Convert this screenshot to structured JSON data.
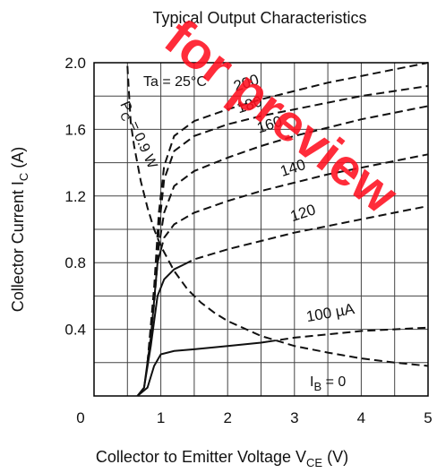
{
  "chart_data": {
    "type": "line",
    "title": "Typical Output Characteristics",
    "xlabel": {
      "main": "Collector to Emitter Voltage  V",
      "sub": "CE",
      "unit": "  (V)"
    },
    "ylabel": {
      "main": "Collector Current  I",
      "sub": "C",
      "unit": "  (A)"
    },
    "xlim": [
      0,
      5
    ],
    "ylim": [
      0,
      2.0
    ],
    "x_ticks": [
      "0",
      "1",
      "2",
      "3",
      "4",
      "5"
    ],
    "y_ticks": [
      "0.4",
      "0.8",
      "1.2",
      "1.6",
      "2.0"
    ],
    "grid": true,
    "watermark": "for preview",
    "annotations": {
      "temperature": "Ta = 25°C",
      "power_main": "P",
      "power_sub": "C",
      "power_rest": " = 0.9 W",
      "ib_main": "I",
      "ib_sub": "B",
      "ib_rest": " = 0"
    },
    "series": [
      {
        "name": "100 µA",
        "style": "solid-dashed",
        "split_x": 2.6,
        "points": [
          [
            0.65,
            0
          ],
          [
            0.8,
            0.05
          ],
          [
            0.9,
            0.18
          ],
          [
            1.0,
            0.25
          ],
          [
            1.2,
            0.27
          ],
          [
            1.5,
            0.28
          ],
          [
            2.0,
            0.3
          ],
          [
            2.5,
            0.32
          ],
          [
            3.0,
            0.35
          ],
          [
            3.5,
            0.37
          ],
          [
            4.0,
            0.39
          ],
          [
            4.5,
            0.4
          ],
          [
            5.0,
            0.41
          ]
        ]
      },
      {
        "name": "120",
        "style": "solid-dashed",
        "split_x": 1.35,
        "points": [
          [
            0.65,
            0
          ],
          [
            0.75,
            0.05
          ],
          [
            0.85,
            0.3
          ],
          [
            0.95,
            0.6
          ],
          [
            1.05,
            0.7
          ],
          [
            1.2,
            0.76
          ],
          [
            1.5,
            0.82
          ],
          [
            2.0,
            0.88
          ],
          [
            2.5,
            0.93
          ],
          [
            3.0,
            0.98
          ],
          [
            3.5,
            1.02
          ],
          [
            4.0,
            1.06
          ],
          [
            4.5,
            1.1
          ],
          [
            5.0,
            1.14
          ]
        ]
      },
      {
        "name": "140",
        "style": "solid-dashed",
        "split_x": 1.0,
        "points": [
          [
            0.65,
            0
          ],
          [
            0.75,
            0.05
          ],
          [
            0.85,
            0.35
          ],
          [
            0.95,
            0.8
          ],
          [
            1.05,
            0.95
          ],
          [
            1.2,
            1.03
          ],
          [
            1.5,
            1.1
          ],
          [
            2.0,
            1.17
          ],
          [
            2.5,
            1.23
          ],
          [
            3.0,
            1.28
          ],
          [
            3.5,
            1.33
          ],
          [
            4.0,
            1.37
          ],
          [
            4.5,
            1.41
          ],
          [
            5.0,
            1.45
          ]
        ]
      },
      {
        "name": "160",
        "style": "dashed",
        "split_x": 0,
        "points": [
          [
            0.8,
            0.2
          ],
          [
            0.9,
            0.55
          ],
          [
            0.97,
            0.9
          ],
          [
            1.05,
            1.1
          ],
          [
            1.2,
            1.26
          ],
          [
            1.5,
            1.35
          ],
          [
            2.0,
            1.43
          ],
          [
            2.5,
            1.5
          ],
          [
            3.0,
            1.56
          ],
          [
            3.5,
            1.61
          ],
          [
            4.0,
            1.66
          ],
          [
            4.5,
            1.7
          ],
          [
            5.0,
            1.74
          ]
        ]
      },
      {
        "name": "180",
        "style": "dashed",
        "split_x": 0,
        "points": [
          [
            0.8,
            0.2
          ],
          [
            0.9,
            0.6
          ],
          [
            0.97,
            1.0
          ],
          [
            1.05,
            1.3
          ],
          [
            1.2,
            1.47
          ],
          [
            1.5,
            1.56
          ],
          [
            2.0,
            1.63
          ],
          [
            2.5,
            1.68
          ],
          [
            3.0,
            1.72
          ],
          [
            3.5,
            1.76
          ],
          [
            4.0,
            1.8
          ],
          [
            4.5,
            1.83
          ],
          [
            5.0,
            1.86
          ]
        ]
      },
      {
        "name": "200",
        "style": "dashed",
        "split_x": 0,
        "points": [
          [
            0.8,
            0.2
          ],
          [
            0.9,
            0.65
          ],
          [
            0.97,
            1.1
          ],
          [
            1.05,
            1.38
          ],
          [
            1.2,
            1.56
          ],
          [
            1.5,
            1.65
          ],
          [
            2.0,
            1.72
          ],
          [
            2.5,
            1.78
          ],
          [
            3.0,
            1.83
          ],
          [
            3.5,
            1.88
          ],
          [
            4.0,
            1.92
          ],
          [
            4.5,
            1.96
          ],
          [
            5.0,
            2.0
          ]
        ]
      },
      {
        "name": "",
        "style": "dashed",
        "split_x": 0,
        "points": [
          [
            0.5,
            1.98
          ],
          [
            0.55,
            1.64
          ],
          [
            0.6,
            1.5
          ],
          [
            0.7,
            1.29
          ],
          [
            0.8,
            1.13
          ],
          [
            0.9,
            1.0
          ],
          [
            1.0,
            0.9
          ],
          [
            1.2,
            0.75
          ],
          [
            1.4,
            0.64
          ],
          [
            1.6,
            0.56
          ],
          [
            1.8,
            0.5
          ],
          [
            2.0,
            0.45
          ],
          [
            2.5,
            0.36
          ],
          [
            3.0,
            0.3
          ],
          [
            3.5,
            0.26
          ],
          [
            4.0,
            0.225
          ],
          [
            4.5,
            0.2
          ],
          [
            5.0,
            0.18
          ]
        ]
      }
    ]
  }
}
